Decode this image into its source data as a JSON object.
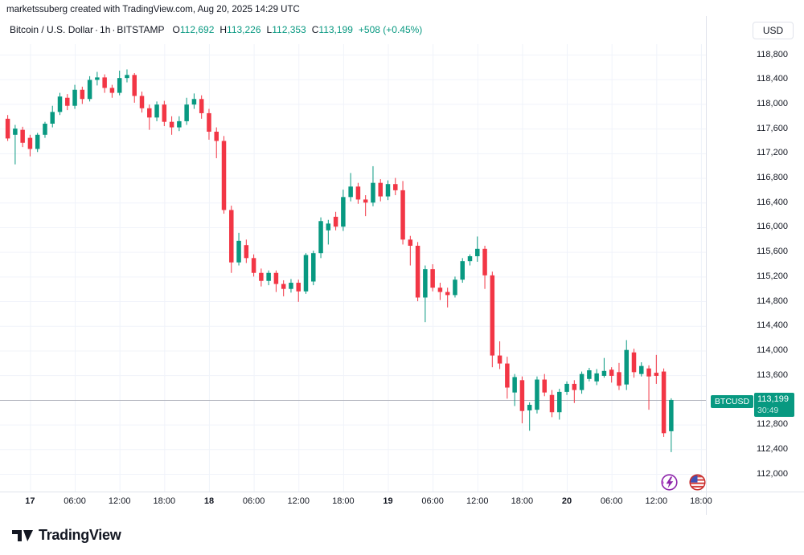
{
  "attribution": "marketssuberg created with TradingView.com, Aug 20, 2025 14:29 UTC",
  "header": {
    "symbol_title": "Bitcoin / U.S. Dollar",
    "interval": "1h",
    "exchange": "BITSTAMP",
    "separator": "·",
    "ohlc": {
      "o_label": "O",
      "o": "112,692",
      "h_label": "H",
      "h": "113,226",
      "l_label": "L",
      "l": "112,353",
      "c_label": "C",
      "c": "113,199",
      "change": "+508 (+0.45%)"
    },
    "currency_button": "USD"
  },
  "price_badge": {
    "symbol": "BTCUSD",
    "price": "113,199",
    "countdown": "30:49"
  },
  "footer": {
    "logo_text": "TradingView"
  },
  "colors": {
    "up": "#089981",
    "down": "#F23645",
    "grid": "#f0f3fa",
    "axis_border": "#e0e3eb",
    "text": "#131722",
    "price_line": "#b2b5be",
    "badge_bg": "#089981",
    "event_purple": "#8e24aa",
    "event_red": "#c62828",
    "event_blue": "#3f51b5"
  },
  "price_axis": {
    "labels": [
      {
        "label": "118,800",
        "price": 118800
      },
      {
        "label": "118,400",
        "price": 118400
      },
      {
        "label": "118,000",
        "price": 118000
      },
      {
        "label": "117,600",
        "price": 117600
      },
      {
        "label": "117,200",
        "price": 117200
      },
      {
        "label": "116,800",
        "price": 116800
      },
      {
        "label": "116,400",
        "price": 116400
      },
      {
        "label": "116,000",
        "price": 116000
      },
      {
        "label": "115,600",
        "price": 115600
      },
      {
        "label": "115,200",
        "price": 115200
      },
      {
        "label": "114,800",
        "price": 114800
      },
      {
        "label": "114,400",
        "price": 114400
      },
      {
        "label": "114,000",
        "price": 114000
      },
      {
        "label": "113,600",
        "price": 113600
      },
      {
        "label": "112,800",
        "price": 112800
      },
      {
        "label": "112,400",
        "price": 112400
      },
      {
        "label": "112,000",
        "price": 112000
      }
    ]
  },
  "time_axis": {
    "labels": [
      {
        "ci": 3,
        "label": "17",
        "bold": true
      },
      {
        "ci": 9,
        "label": "06:00",
        "bold": false
      },
      {
        "ci": 15,
        "label": "12:00",
        "bold": false
      },
      {
        "ci": 21,
        "label": "18:00",
        "bold": false
      },
      {
        "ci": 27,
        "label": "18",
        "bold": true
      },
      {
        "ci": 33,
        "label": "06:00",
        "bold": false
      },
      {
        "ci": 39,
        "label": "12:00",
        "bold": false
      },
      {
        "ci": 45,
        "label": "18:00",
        "bold": false
      },
      {
        "ci": 51,
        "label": "19",
        "bold": true
      },
      {
        "ci": 57,
        "label": "06:00",
        "bold": false
      },
      {
        "ci": 63,
        "label": "12:00",
        "bold": false
      },
      {
        "ci": 69,
        "label": "18:00",
        "bold": false
      },
      {
        "ci": 75,
        "label": "20",
        "bold": true
      },
      {
        "ci": 81,
        "label": "06:00",
        "bold": false
      },
      {
        "ci": 87,
        "label": "12:00",
        "bold": false
      },
      {
        "ci": 93,
        "label": "18:00",
        "bold": false
      }
    ]
  },
  "chart_data": {
    "type": "candlestick",
    "symbol": "BTCUSD",
    "exchange": "BITSTAMP",
    "interval": "1h",
    "title": "Bitcoin / U.S. Dollar · 1h · BITSTAMP",
    "y_axis_range": [
      111800,
      119050
    ],
    "y_gridline_step": 400,
    "grid": true,
    "last_price": 113199,
    "last_candle": {
      "open": 112692,
      "high": 113226,
      "low": 112353,
      "close": 113199,
      "change": 508,
      "change_pct": 0.45
    },
    "candle_format": [
      "time",
      "open",
      "high",
      "low",
      "close"
    ],
    "candles": [
      [
        "Aug 16 21:00",
        117760,
        117820,
        117400,
        117440
      ],
      [
        "Aug 16 22:00",
        117500,
        117660,
        117020,
        117600
      ],
      [
        "Aug 16 23:00",
        117580,
        117630,
        117300,
        117370
      ],
      [
        "Aug 17 00:00",
        117450,
        117500,
        117150,
        117270
      ],
      [
        "Aug 17 01:00",
        117270,
        117530,
        117220,
        117500
      ],
      [
        "Aug 17 02:00",
        117500,
        117710,
        117450,
        117680
      ],
      [
        "Aug 17 03:00",
        117680,
        117970,
        117620,
        117870
      ],
      [
        "Aug 17 04:00",
        117870,
        118180,
        117820,
        118120
      ],
      [
        "Aug 17 05:00",
        118100,
        118160,
        117900,
        117970
      ],
      [
        "Aug 17 06:00",
        117970,
        118310,
        117920,
        118230
      ],
      [
        "Aug 17 07:00",
        118230,
        118280,
        118000,
        118080
      ],
      [
        "Aug 17 08:00",
        118080,
        118450,
        118040,
        118390
      ],
      [
        "Aug 17 09:00",
        118390,
        118520,
        118300,
        118430
      ],
      [
        "Aug 17 10:00",
        118430,
        118480,
        118180,
        118260
      ],
      [
        "Aug 17 11:00",
        118260,
        118310,
        118100,
        118180
      ],
      [
        "Aug 17 12:00",
        118180,
        118540,
        118140,
        118420
      ],
      [
        "Aug 17 13:00",
        118420,
        118560,
        118350,
        118470
      ],
      [
        "Aug 17 14:00",
        118470,
        118500,
        118020,
        118130
      ],
      [
        "Aug 17 15:00",
        118130,
        118200,
        117860,
        117930
      ],
      [
        "Aug 17 16:00",
        117930,
        117990,
        117580,
        117780
      ],
      [
        "Aug 17 17:00",
        117780,
        118040,
        117720,
        117990
      ],
      [
        "Aug 17 18:00",
        117990,
        118050,
        117640,
        117710
      ],
      [
        "Aug 17 19:00",
        117710,
        117800,
        117500,
        117620
      ],
      [
        "Aug 17 20:00",
        117620,
        117800,
        117560,
        117720
      ],
      [
        "Aug 17 21:00",
        117720,
        118100,
        117660,
        117990
      ],
      [
        "Aug 17 22:00",
        117990,
        118170,
        117920,
        118080
      ],
      [
        "Aug 17 23:00",
        118080,
        118140,
        117760,
        117850
      ],
      [
        "Aug 18 00:00",
        117850,
        117920,
        117420,
        117550
      ],
      [
        "Aug 18 01:00",
        117550,
        117620,
        117120,
        117400
      ],
      [
        "Aug 18 02:00",
        117400,
        117480,
        116220,
        116280
      ],
      [
        "Aug 18 03:00",
        116280,
        116350,
        115260,
        115430
      ],
      [
        "Aug 18 04:00",
        115430,
        115910,
        115380,
        115780
      ],
      [
        "Aug 18 05:00",
        115710,
        115800,
        115420,
        115500
      ],
      [
        "Aug 18 06:00",
        115500,
        115560,
        115200,
        115260
      ],
      [
        "Aug 18 07:00",
        115260,
        115330,
        115040,
        115130
      ],
      [
        "Aug 18 08:00",
        115130,
        115300,
        115060,
        115260
      ],
      [
        "Aug 18 09:00",
        115260,
        115300,
        114950,
        115080
      ],
      [
        "Aug 18 10:00",
        115080,
        115140,
        114880,
        115000
      ],
      [
        "Aug 18 11:00",
        115000,
        115160,
        114940,
        115100
      ],
      [
        "Aug 18 12:00",
        115100,
        115150,
        114790,
        114960
      ],
      [
        "Aug 18 13:00",
        114960,
        115580,
        114920,
        115550
      ],
      [
        "Aug 18 14:00",
        115120,
        115620,
        115060,
        115580
      ],
      [
        "Aug 18 15:00",
        115580,
        116160,
        115500,
        116100
      ],
      [
        "Aug 18 16:00",
        115950,
        116120,
        115720,
        116060
      ],
      [
        "Aug 18 17:00",
        116170,
        116250,
        115950,
        116010
      ],
      [
        "Aug 18 18:00",
        116010,
        116610,
        115940,
        116490
      ],
      [
        "Aug 18 19:00",
        116490,
        116880,
        116420,
        116660
      ],
      [
        "Aug 18 20:00",
        116660,
        116720,
        116380,
        116450
      ],
      [
        "Aug 18 21:00",
        116450,
        116520,
        116180,
        116400
      ],
      [
        "Aug 18 22:00",
        116400,
        116990,
        116340,
        116720
      ],
      [
        "Aug 18 23:00",
        116720,
        116780,
        116420,
        116500
      ],
      [
        "Aug 19 00:00",
        116500,
        116760,
        116440,
        116700
      ],
      [
        "Aug 19 01:00",
        116700,
        116800,
        116520,
        116600
      ],
      [
        "Aug 19 02:00",
        116600,
        116750,
        115720,
        115800
      ],
      [
        "Aug 19 03:00",
        115800,
        115860,
        115380,
        115700
      ],
      [
        "Aug 19 04:00",
        115700,
        115760,
        114800,
        114860
      ],
      [
        "Aug 19 05:00",
        114860,
        115380,
        114460,
        115320
      ],
      [
        "Aug 19 06:00",
        115320,
        115400,
        114960,
        115020
      ],
      [
        "Aug 19 07:00",
        115020,
        115100,
        114820,
        114950
      ],
      [
        "Aug 19 08:00",
        114950,
        115020,
        114700,
        114900
      ],
      [
        "Aug 19 09:00",
        114900,
        115200,
        114860,
        115150
      ],
      [
        "Aug 19 10:00",
        115150,
        115500,
        115100,
        115450
      ],
      [
        "Aug 19 11:00",
        115450,
        115560,
        115380,
        115530
      ],
      [
        "Aug 19 12:00",
        115530,
        115850,
        115440,
        115650
      ],
      [
        "Aug 19 13:00",
        115650,
        115700,
        115000,
        115220
      ],
      [
        "Aug 19 14:00",
        115220,
        115280,
        113730,
        113920
      ],
      [
        "Aug 19 15:00",
        113920,
        114150,
        113700,
        113790
      ],
      [
        "Aug 19 16:00",
        113790,
        113900,
        113220,
        113400
      ],
      [
        "Aug 19 17:00",
        113320,
        113620,
        113100,
        113570
      ],
      [
        "Aug 19 18:00",
        113520,
        113580,
        112820,
        113020
      ],
      [
        "Aug 19 19:00",
        113030,
        113160,
        112700,
        113120
      ],
      [
        "Aug 19 20:00",
        113040,
        113580,
        112980,
        113530
      ],
      [
        "Aug 19 21:00",
        113530,
        113620,
        113260,
        113320
      ],
      [
        "Aug 19 22:00",
        113280,
        113360,
        112920,
        113000
      ],
      [
        "Aug 19 23:00",
        113000,
        113380,
        112880,
        113330
      ],
      [
        "Aug 20 00:00",
        113330,
        113500,
        113280,
        113460
      ],
      [
        "Aug 20 01:00",
        113460,
        113520,
        113150,
        113360
      ],
      [
        "Aug 20 02:00",
        113360,
        113660,
        113300,
        113620
      ],
      [
        "Aug 20 03:00",
        113540,
        113720,
        113500,
        113680
      ],
      [
        "Aug 20 04:00",
        113500,
        113700,
        113440,
        113630
      ],
      [
        "Aug 20 05:00",
        113590,
        113880,
        113560,
        113670
      ],
      [
        "Aug 20 06:00",
        113690,
        113730,
        113480,
        113590
      ],
      [
        "Aug 20 07:00",
        113650,
        113800,
        113360,
        113430
      ],
      [
        "Aug 20 08:00",
        113450,
        114170,
        113360,
        114010
      ],
      [
        "Aug 20 09:00",
        113970,
        114030,
        113560,
        113650
      ],
      [
        "Aug 20 10:00",
        113620,
        113810,
        113580,
        113750
      ],
      [
        "Aug 20 11:00",
        113710,
        113760,
        113040,
        113580
      ],
      [
        "Aug 20 12:00",
        113640,
        113930,
        113460,
        113590
      ],
      [
        "Aug 20 13:00",
        113660,
        113710,
        112600,
        112660
      ],
      [
        "Aug 20 14:00",
        112692,
        113226,
        112353,
        113199
      ]
    ]
  }
}
